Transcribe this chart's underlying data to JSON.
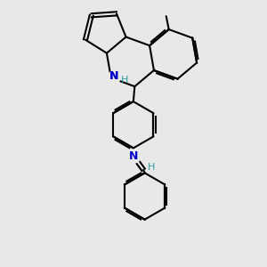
{
  "background_color": "#e8e8e8",
  "bond_color": "#000000",
  "N_color": "#0000cc",
  "H_color": "#2ca0a0",
  "figsize": [
    3.0,
    3.0
  ],
  "dpi": 100,
  "lw": 1.5,
  "xlim": [
    0,
    10
  ],
  "ylim": [
    0,
    10
  ]
}
